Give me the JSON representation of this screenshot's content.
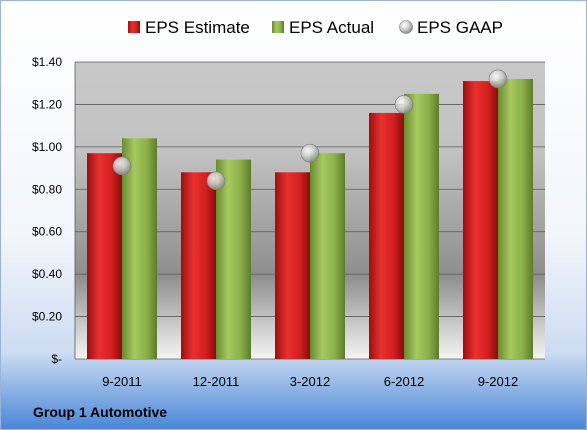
{
  "company": "Group 1 Automotive",
  "chart_data": {
    "type": "bar",
    "categories": [
      "9-2011",
      "12-2011",
      "3-2012",
      "6-2012",
      "9-2012"
    ],
    "series": [
      {
        "name": "EPS Estimate",
        "type": "bar",
        "color": "#d42020",
        "values": [
          0.97,
          0.88,
          0.88,
          1.16,
          1.31
        ]
      },
      {
        "name": "EPS Actual",
        "type": "bar",
        "color": "#8cb04a",
        "values": [
          1.04,
          0.94,
          0.97,
          1.25,
          1.32
        ]
      },
      {
        "name": "EPS GAAP",
        "type": "scatter",
        "color": "#b0b0b0",
        "values": [
          0.91,
          0.84,
          0.97,
          1.2,
          1.32
        ]
      }
    ],
    "ylim": [
      0,
      1.4
    ],
    "yticks": [
      0,
      0.2,
      0.4,
      0.6,
      0.8,
      1.0,
      1.2,
      1.4
    ],
    "ytick_labels": [
      "$-",
      "$0.20",
      "$0.40",
      "$0.60",
      "$0.80",
      "$1.00",
      "$1.20",
      "$1.40"
    ],
    "grid": true,
    "legend_position": "top"
  }
}
